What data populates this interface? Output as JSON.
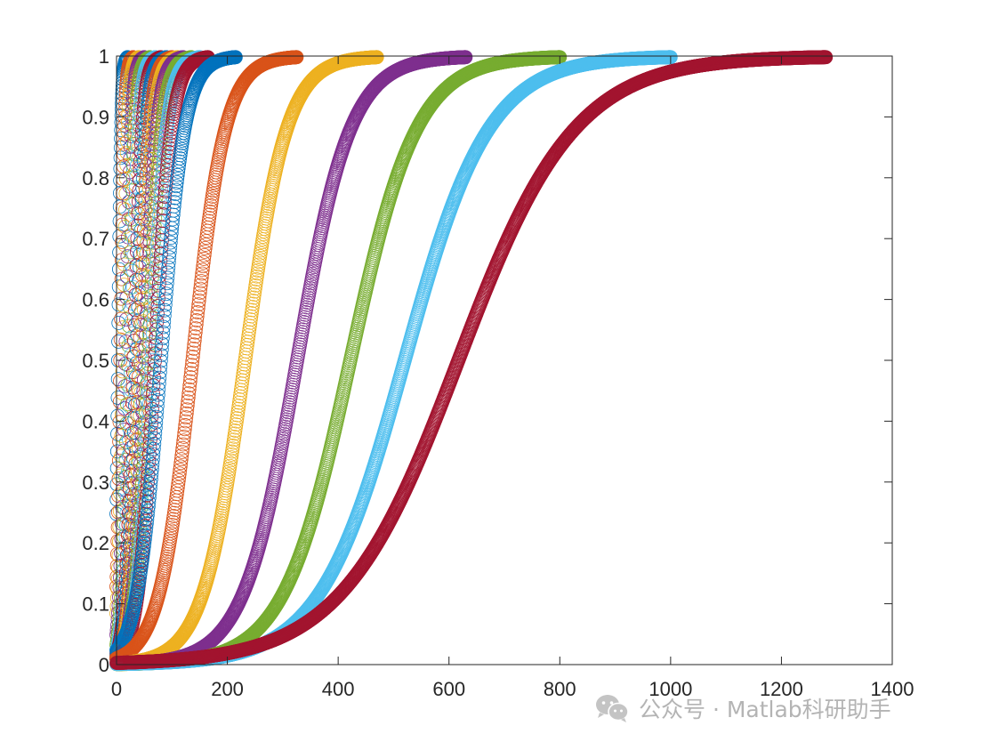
{
  "chart_data": {
    "type": "scatter",
    "marker": "open-circle",
    "xlim": [
      0,
      1400
    ],
    "ylim": [
      0,
      1
    ],
    "xticks": [
      0,
      200,
      400,
      600,
      800,
      1000,
      1200,
      1400
    ],
    "yticks": [
      0,
      0.1,
      0.2,
      0.3,
      0.4,
      0.5,
      0.6,
      0.7,
      0.8,
      0.9,
      1
    ],
    "xtick_labels": [
      "0",
      "200",
      "400",
      "600",
      "800",
      "1000",
      "1200",
      "1400"
    ],
    "ytick_labels": [
      "0",
      "0.1",
      "0.2",
      "0.3",
      "0.4",
      "0.5",
      "0.6",
      "0.7",
      "0.8",
      "0.9",
      "1"
    ],
    "grid": false,
    "box": true,
    "series": [
      {
        "x_max": 20,
        "midpoint": 3,
        "color": "#0072BD"
      },
      {
        "x_max": 30,
        "midpoint": 7,
        "color": "#D95319"
      },
      {
        "x_max": 40,
        "midpoint": 11,
        "color": "#EDB120"
      },
      {
        "x_max": 50,
        "midpoint": 16,
        "color": "#7E2F8E"
      },
      {
        "x_max": 60,
        "midpoint": 21,
        "color": "#77AC30"
      },
      {
        "x_max": 70,
        "midpoint": 26,
        "color": "#4DBEEE"
      },
      {
        "x_max": 80,
        "midpoint": 31,
        "color": "#A2142F"
      },
      {
        "x_max": 90,
        "midpoint": 36,
        "color": "#0072BD"
      },
      {
        "x_max": 100,
        "midpoint": 41,
        "color": "#D95319"
      },
      {
        "x_max": 110,
        "midpoint": 46,
        "color": "#EDB120"
      },
      {
        "x_max": 120,
        "midpoint": 51,
        "color": "#7E2F8E"
      },
      {
        "x_max": 135,
        "midpoint": 57,
        "color": "#77AC30"
      },
      {
        "x_max": 150,
        "midpoint": 63,
        "color": "#4DBEEE"
      },
      {
        "x_max": 165,
        "midpoint": 69,
        "color": "#A2142F"
      },
      {
        "x_max": 215,
        "midpoint": 80,
        "color": "#0072BD"
      },
      {
        "x_max": 325,
        "midpoint": 137,
        "color": "#D95319"
      },
      {
        "x_max": 470,
        "midpoint": 232,
        "color": "#EDB120"
      },
      {
        "x_max": 630,
        "midpoint": 326,
        "color": "#7E2F8E"
      },
      {
        "x_max": 800,
        "midpoint": 422,
        "color": "#77AC30"
      },
      {
        "x_max": 1000,
        "midpoint": 520,
        "color": "#4DBEEE"
      },
      {
        "x_max": 1280,
        "midpoint": 617,
        "color": "#A2142F"
      }
    ]
  },
  "watermark": {
    "icon": "wechat-icon",
    "text": "公众号 · Matlab科研助手"
  }
}
